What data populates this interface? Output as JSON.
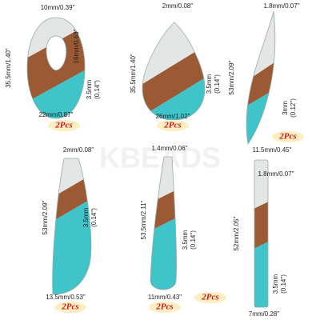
{
  "watermark": "KBEADS",
  "items": [
    {
      "top": "10mm/0.39\"",
      "height": "35.5mm/1.40\"",
      "inner": "16mm/0.63\"",
      "thickness": "3.5mm",
      "thickness_in": "(0.14\")",
      "width": "22mm/0.87\"",
      "quantity": "2Pcs"
    },
    {
      "top": "2mm/0.08\"",
      "height": "35.5mm/1.40\"",
      "thickness": "3.5mm",
      "thickness_in": "(0.14\")",
      "width": "26mm/1.02\"",
      "quantity": "2Pcs"
    },
    {
      "top": "1.8mm/0.07\"",
      "height": "53mm/2.09\"",
      "thickness": "3mm",
      "thickness_in": "(0.12\")",
      "width": "11.5mm/0.45\"",
      "quantity": "2Pcs"
    },
    {
      "top": "2mm/0.08\"",
      "height": "53mm/2.09\"",
      "thickness": "3.5mm",
      "thickness_in": "(0.14\")",
      "width": "13.5mm/0.53\"",
      "quantity": "2Pcs"
    },
    {
      "top": "1.4mm/0.06\"",
      "height": "53.5mm/2.11\"",
      "thickness": "3.5mm",
      "thickness_in": "(0.14\")",
      "width": "11mm/0.43\"",
      "quantity": "2Pcs"
    },
    {
      "top": "1.8mm/0.07\"",
      "height": "52mm/2.05\"",
      "thickness": "3.5mm",
      "thickness_in": "(0.14\")",
      "width": "7mm/0.28\"",
      "quantity": "2Pcs"
    }
  ]
}
